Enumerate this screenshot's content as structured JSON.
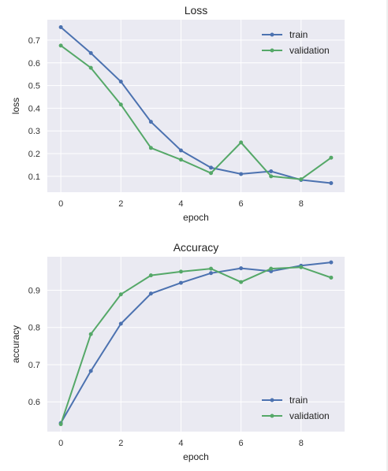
{
  "chart_data": [
    {
      "type": "line",
      "title": "Loss",
      "xlabel": "epoch",
      "ylabel": "loss",
      "x": [
        0,
        1,
        2,
        3,
        4,
        5,
        6,
        7,
        8,
        9
      ],
      "xlim": [
        -0.45,
        9.45
      ],
      "ylim": [
        0.03,
        0.79
      ],
      "xticks": [
        0,
        2,
        4,
        6,
        8
      ],
      "yticks": [
        0.1,
        0.2,
        0.3,
        0.4,
        0.5,
        0.6,
        0.7
      ],
      "grid": true,
      "legend_position": "upper right",
      "series": [
        {
          "name": "train",
          "color": "#4c72b0",
          "values": [
            0.757,
            0.643,
            0.517,
            0.34,
            0.214,
            0.138,
            0.11,
            0.122,
            0.084,
            0.07
          ]
        },
        {
          "name": "validation",
          "color": "#55a868",
          "values": [
            0.676,
            0.578,
            0.416,
            0.225,
            0.173,
            0.114,
            0.249,
            0.1,
            0.087,
            0.182
          ]
        }
      ]
    },
    {
      "type": "line",
      "title": "Accuracy",
      "xlabel": "epoch",
      "ylabel": "accuracy",
      "x": [
        0,
        1,
        2,
        3,
        4,
        5,
        6,
        7,
        8,
        9
      ],
      "xlim": [
        -0.45,
        9.45
      ],
      "ylim": [
        0.52,
        0.99
      ],
      "xticks": [
        0,
        2,
        4,
        6,
        8
      ],
      "yticks": [
        0.6,
        0.7,
        0.8,
        0.9
      ],
      "grid": true,
      "legend_position": "lower right",
      "series": [
        {
          "name": "train",
          "color": "#4c72b0",
          "values": [
            0.543,
            0.683,
            0.81,
            0.891,
            0.92,
            0.946,
            0.959,
            0.951,
            0.966,
            0.975
          ]
        },
        {
          "name": "validation",
          "color": "#55a868",
          "values": [
            0.54,
            0.782,
            0.889,
            0.94,
            0.95,
            0.958,
            0.922,
            0.958,
            0.962,
            0.934
          ]
        }
      ]
    }
  ]
}
